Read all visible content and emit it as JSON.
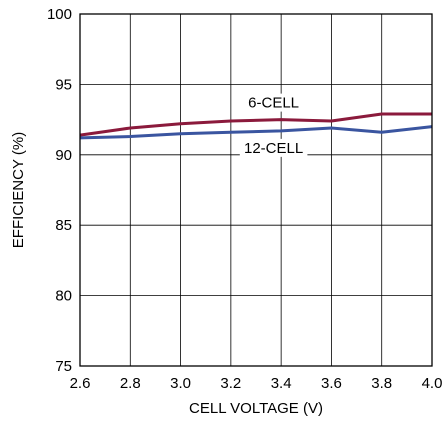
{
  "chart_data": {
    "type": "line",
    "title": "",
    "xlabel": "CELL VOLTAGE (V)",
    "ylabel": "EFFICIENCY (%)",
    "xlim": [
      2.6,
      4.0
    ],
    "ylim": [
      75,
      100
    ],
    "x_ticks": [
      2.6,
      2.8,
      3.0,
      3.2,
      3.4,
      3.6,
      3.8,
      4.0
    ],
    "x_tick_labels": [
      "2.6",
      "2.8",
      "3.0",
      "3.2",
      "3.4",
      "3.6",
      "3.8",
      "4.0"
    ],
    "y_ticks": [
      75,
      80,
      85,
      90,
      95,
      100
    ],
    "y_tick_labels": [
      "75",
      "80",
      "85",
      "90",
      "95",
      "100"
    ],
    "grid": true,
    "series": [
      {
        "name": "6-CELL",
        "color": "#8b1a3c",
        "x": [
          2.6,
          2.8,
          3.0,
          3.2,
          3.4,
          3.6,
          3.8,
          4.0
        ],
        "y": [
          91.4,
          91.9,
          92.2,
          92.4,
          92.5,
          92.4,
          92.9,
          92.9
        ]
      },
      {
        "name": "12-CELL",
        "color": "#3a55a0",
        "x": [
          2.6,
          2.8,
          3.0,
          3.2,
          3.4,
          3.6,
          3.8,
          4.0
        ],
        "y": [
          91.2,
          91.3,
          91.5,
          91.6,
          91.7,
          91.9,
          91.6,
          92.0
        ]
      }
    ]
  }
}
